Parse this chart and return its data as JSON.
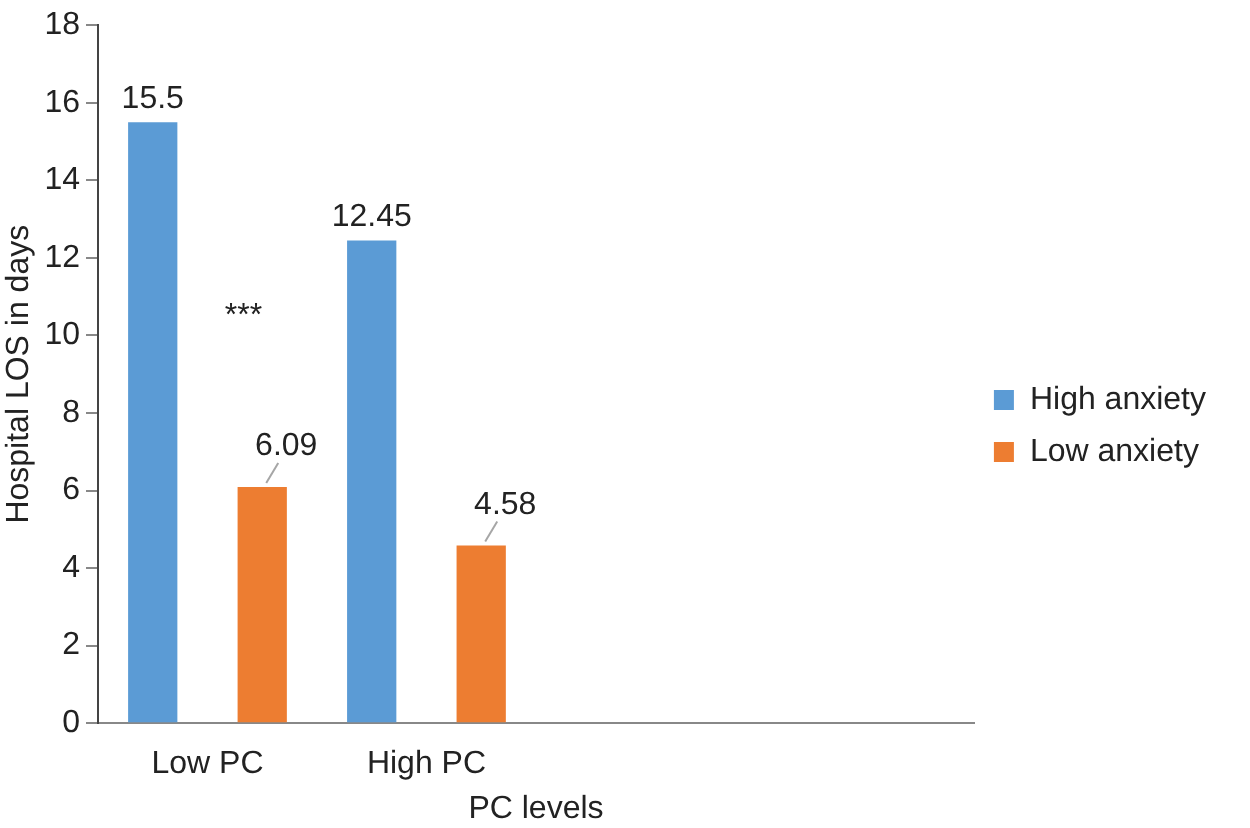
{
  "chart_data": {
    "type": "bar",
    "xlabel": "PC levels",
    "ylabel": "Hospital LOS in days",
    "categories": [
      "Low PC",
      "High PC",
      null,
      null
    ],
    "series": [
      {
        "name": "High anxiety",
        "color": "#5b9bd5",
        "values": [
          15.5,
          12.45,
          null,
          null
        ]
      },
      {
        "name": "Low anxiety",
        "color": "#ed7d31",
        "values": [
          6.09,
          4.58,
          null,
          null
        ]
      }
    ],
    "ylim": [
      0,
      18
    ],
    "yticks": [
      0,
      2,
      4,
      6,
      8,
      10,
      12,
      14,
      16,
      18
    ],
    "grid": false,
    "legend": "right",
    "data_labels": true,
    "annotations": [
      "***"
    ]
  }
}
